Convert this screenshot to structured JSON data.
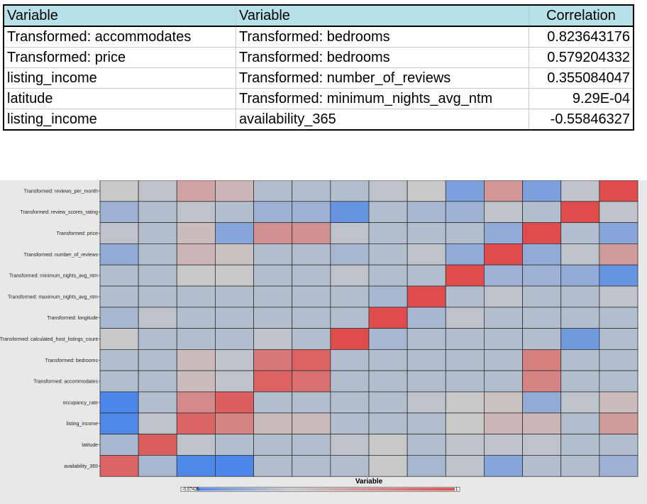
{
  "table": {
    "headers": [
      "Variable",
      "Variable",
      "Correlation"
    ],
    "rows": [
      [
        "Transformed: accommodates",
        "Transformed: bedrooms",
        "0.823643176"
      ],
      [
        "Transformed: price",
        "Transformed: bedrooms",
        "0.579204332"
      ],
      [
        "listing_income",
        "Transformed: number_of_reviews",
        "0.355084047"
      ],
      [
        "latitude",
        "Transformed: minimum_nights_avg_ntm",
        "9.29E-04"
      ],
      [
        "listing_income",
        "availability_365",
        "-0.55846327"
      ]
    ]
  },
  "chart_data": {
    "type": "heatmap",
    "xlabel": "Variable",
    "rows": [
      "Transformed: reviews_per_month",
      "Transformed: review_scores_rating",
      "Transformed: price",
      "Transformed: number_of_reviews",
      "Transformed: minimum_nights_avg_ntm",
      "Transformed: maximum_nights_avg_ntm",
      "Transformed: longitude",
      "Transformed: calculated_host_listings_count",
      "Transformed: bedrooms",
      "Transformed: accommodates",
      "occupancy_rate",
      "listing_income",
      "latitude",
      "availability_365"
    ],
    "columns_shown": false,
    "color_scale": {
      "min": -0.57425,
      "max": 1,
      "min_label": "-0.57425",
      "max_label": "1",
      "low_color": "#4a86e8",
      "mid_color": "#c8c8c8",
      "high_color": "#e04b4b"
    },
    "values": [
      [
        0.0,
        -0.05,
        0.3,
        0.15,
        -0.1,
        -0.1,
        -0.1,
        -0.05,
        0.0,
        -0.35,
        0.4,
        -0.35,
        -0.05,
        1.0
      ],
      [
        -0.2,
        -0.1,
        -0.05,
        -0.1,
        -0.2,
        -0.2,
        -0.45,
        -0.1,
        -0.15,
        -0.2,
        -0.05,
        -0.1,
        1.0,
        -0.05
      ],
      [
        -0.05,
        -0.1,
        0.1,
        -0.3,
        0.45,
        0.45,
        -0.05,
        -0.1,
        -0.1,
        -0.1,
        -0.25,
        1.0,
        -0.1,
        -0.3
      ],
      [
        -0.25,
        -0.1,
        0.15,
        0.05,
        -0.1,
        -0.1,
        -0.15,
        -0.1,
        -0.05,
        -0.25,
        1.0,
        -0.25,
        -0.05,
        0.36
      ],
      [
        -0.1,
        -0.1,
        0.0,
        0.0,
        -0.1,
        -0.1,
        -0.05,
        -0.1,
        -0.1,
        1.0,
        -0.2,
        -0.2,
        -0.25,
        -0.45
      ],
      [
        -0.1,
        -0.1,
        -0.1,
        -0.1,
        -0.1,
        -0.1,
        -0.1,
        -0.15,
        1.0,
        -0.1,
        -0.05,
        -0.1,
        -0.1,
        -0.05
      ],
      [
        -0.15,
        -0.05,
        -0.1,
        -0.1,
        -0.1,
        -0.1,
        -0.1,
        1.0,
        -0.15,
        -0.05,
        -0.1,
        -0.1,
        -0.1,
        -0.1
      ],
      [
        0.0,
        -0.1,
        -0.1,
        -0.1,
        -0.05,
        -0.1,
        1.0,
        -0.15,
        -0.1,
        -0.1,
        -0.1,
        -0.1,
        -0.4,
        -0.1
      ],
      [
        -0.1,
        -0.1,
        0.1,
        -0.05,
        0.65,
        0.82,
        -0.1,
        -0.1,
        -0.1,
        -0.1,
        -0.1,
        0.58,
        -0.1,
        -0.1
      ],
      [
        -0.1,
        -0.1,
        0.1,
        -0.05,
        0.82,
        0.7,
        -0.1,
        -0.1,
        -0.1,
        -0.1,
        -0.1,
        0.55,
        -0.1,
        -0.1
      ],
      [
        -0.57,
        -0.1,
        0.5,
        0.85,
        -0.1,
        -0.1,
        -0.1,
        -0.1,
        -0.05,
        0.0,
        0.05,
        -0.25,
        -0.05,
        0.1
      ],
      [
        -0.55,
        -0.05,
        0.8,
        0.55,
        0.1,
        0.1,
        -0.1,
        -0.1,
        -0.1,
        0.0,
        0.15,
        0.15,
        -0.1,
        0.36
      ],
      [
        -0.15,
        0.85,
        -0.05,
        -0.1,
        -0.1,
        -0.1,
        -0.05,
        0.0,
        -0.1,
        -0.05,
        -0.05,
        -0.05,
        -0.1,
        -0.1
      ],
      [
        0.8,
        -0.15,
        -0.55,
        -0.57,
        -0.1,
        -0.1,
        -0.1,
        0.0,
        -0.15,
        -0.05,
        -0.3,
        -0.1,
        -0.1,
        -0.2
      ]
    ]
  }
}
